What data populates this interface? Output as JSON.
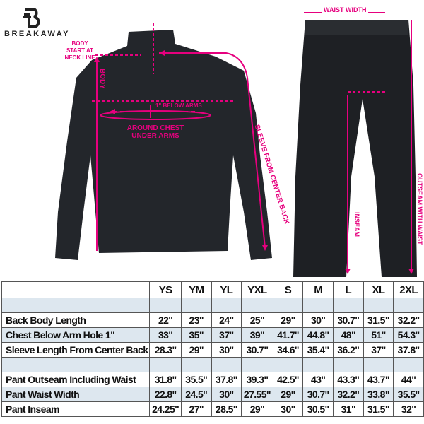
{
  "brand": {
    "name": "BREAKAWAY",
    "logo_letter": "B"
  },
  "colors": {
    "annotation": "#e6007e",
    "garment": "#23262b",
    "table_highlight": "#dde7ef"
  },
  "annotations": {
    "body_start": [
      "BODY",
      "START AT",
      "NECK LINE"
    ],
    "body": "BODY",
    "below_arms": "1\" BELOW ARMS",
    "around_chest": [
      "AROUND CHEST",
      "UNDER ARMS"
    ],
    "sleeve": "SLEEVE FROM CENTER BACK",
    "waist_width": "WAIST WIDTH",
    "inseam": "INSEAM",
    "outseam": "OUTSEAM WITH WAIST"
  },
  "table": {
    "sizes": [
      "YS",
      "YM",
      "YL",
      "YXL",
      "S",
      "M",
      "L",
      "XL",
      "2XL"
    ],
    "jacket_rows": [
      {
        "label": "Back Body Length",
        "values": [
          "22\"",
          "23\"",
          "24\"",
          "25\"",
          "29\"",
          "30\"",
          "30.7\"",
          "31.5\"",
          "32.2\""
        ]
      },
      {
        "label": "Chest Below Arm Hole 1\"",
        "values": [
          "33\"",
          "35\"",
          "37\"",
          "39\"",
          "41.7\"",
          "44.8\"",
          "48\"",
          "51\"",
          "54.3\""
        ]
      },
      {
        "label": "Sleeve Length From Center Back",
        "values": [
          "28.3\"",
          "29\"",
          "30\"",
          "30.7\"",
          "34.6\"",
          "35.4\"",
          "36.2\"",
          "37\"",
          "37.8\""
        ]
      }
    ],
    "pant_rows": [
      {
        "label": "Pant Outseam Including Waist",
        "values": [
          "31.8\"",
          "35.5\"",
          "37.8\"",
          "39.3\"",
          "42.5\"",
          "43\"",
          "43.3\"",
          "43.7\"",
          "44\""
        ]
      },
      {
        "label": "Pant Waist Width",
        "values": [
          "22.8\"",
          "24.5\"",
          "30\"",
          "27.55\"",
          "29\"",
          "30.7\"",
          "32.2\"",
          "33.8\"",
          "35.5\""
        ]
      },
      {
        "label": "Pant Inseam",
        "values": [
          "24.25\"",
          "27\"",
          "28.5\"",
          "29\"",
          "30\"",
          "30.5\"",
          "31\"",
          "31.5\"",
          "32\""
        ]
      }
    ]
  }
}
